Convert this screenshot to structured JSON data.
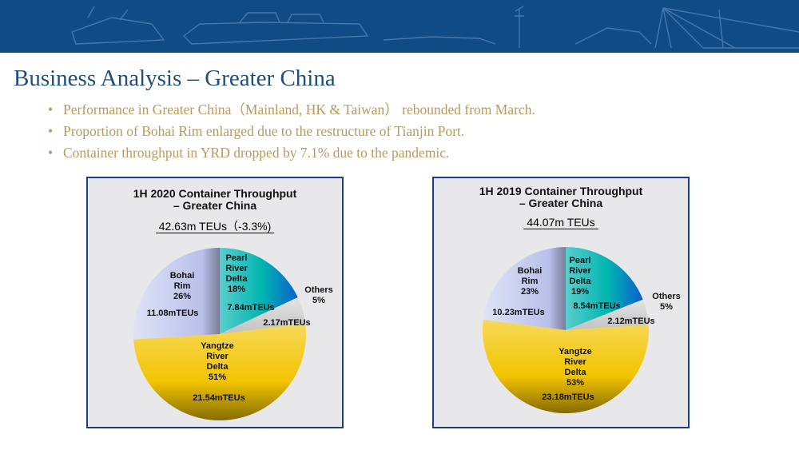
{
  "header": {
    "title": "Business Analysis  –  Greater China",
    "bullets": [
      "Performance in Greater China（Mainland, HK & Taiwan） rebounded from March.",
      "Proportion of Bohai Rim enlarged due to the restructure of Tianjin Port.",
      "Container throughput in YRD dropped by 7.1% due to the pandemic."
    ],
    "bullet_symbol": "•"
  },
  "colors": {
    "banner": "#114b86",
    "title": "#1f4e79",
    "bullets": "#b89a5e",
    "panel_border": "#1e3d8f",
    "panel_bg": "#e8e8ea",
    "pearl": "#00b4b0",
    "others": "#d8d8d8",
    "yangtze": "#f2c400",
    "bohai": "#b8c0ea"
  },
  "chart_data": [
    {
      "type": "pie",
      "title_line1": "1H 2020 Container Throughput",
      "title_line2": "– Greater China",
      "total": "42.63m TEUs（-3.3%)",
      "slices": [
        {
          "name": "Pearl River Delta",
          "lines": [
            "Pearl",
            "River",
            "Delta",
            "18%"
          ],
          "percent": 18,
          "value": 7.84,
          "value_label": "7.84mTEUs",
          "color_key": "pearl"
        },
        {
          "name": "Others",
          "lines": [
            "Others",
            "5%"
          ],
          "percent": 5,
          "value": 2.17,
          "value_label": "2.17mTEUs",
          "color_key": "others"
        },
        {
          "name": "Yangtze River Delta",
          "lines": [
            "Yangtze",
            "River",
            "Delta",
            "51%"
          ],
          "percent": 51,
          "value": 21.54,
          "value_label": "21.54mTEUs",
          "color_key": "yangtze"
        },
        {
          "name": "Bohai Rim",
          "lines": [
            "Bohai",
            "Rim",
            "26%"
          ],
          "percent": 26,
          "value": 11.08,
          "value_label": "11.08mTEUs",
          "color_key": "bohai"
        }
      ]
    },
    {
      "type": "pie",
      "title_line1": "1H 2019 Container Throughput",
      "title_line2": "– Greater China",
      "total": "44.07m  TEUs",
      "slices": [
        {
          "name": "Pearl River Delta",
          "lines": [
            "Pearl",
            "River",
            "Delta",
            "19%"
          ],
          "percent": 19,
          "value": 8.54,
          "value_label": "8.54mTEUs",
          "color_key": "pearl"
        },
        {
          "name": "Others",
          "lines": [
            "Others",
            "5%"
          ],
          "percent": 5,
          "value": 2.12,
          "value_label": "2.12mTEUs",
          "color_key": "others"
        },
        {
          "name": "Yangtze River Delta",
          "lines": [
            "Yangtze",
            "River",
            "Delta",
            "53%"
          ],
          "percent": 53,
          "value": 23.18,
          "value_label": "23.18mTEUs",
          "color_key": "yangtze"
        },
        {
          "name": "Bohai Rim",
          "lines": [
            "Bohai",
            "Rim",
            "23%"
          ],
          "percent": 23,
          "value": 10.23,
          "value_label": "10.23mTEUs",
          "color_key": "bohai"
        }
      ]
    }
  ]
}
